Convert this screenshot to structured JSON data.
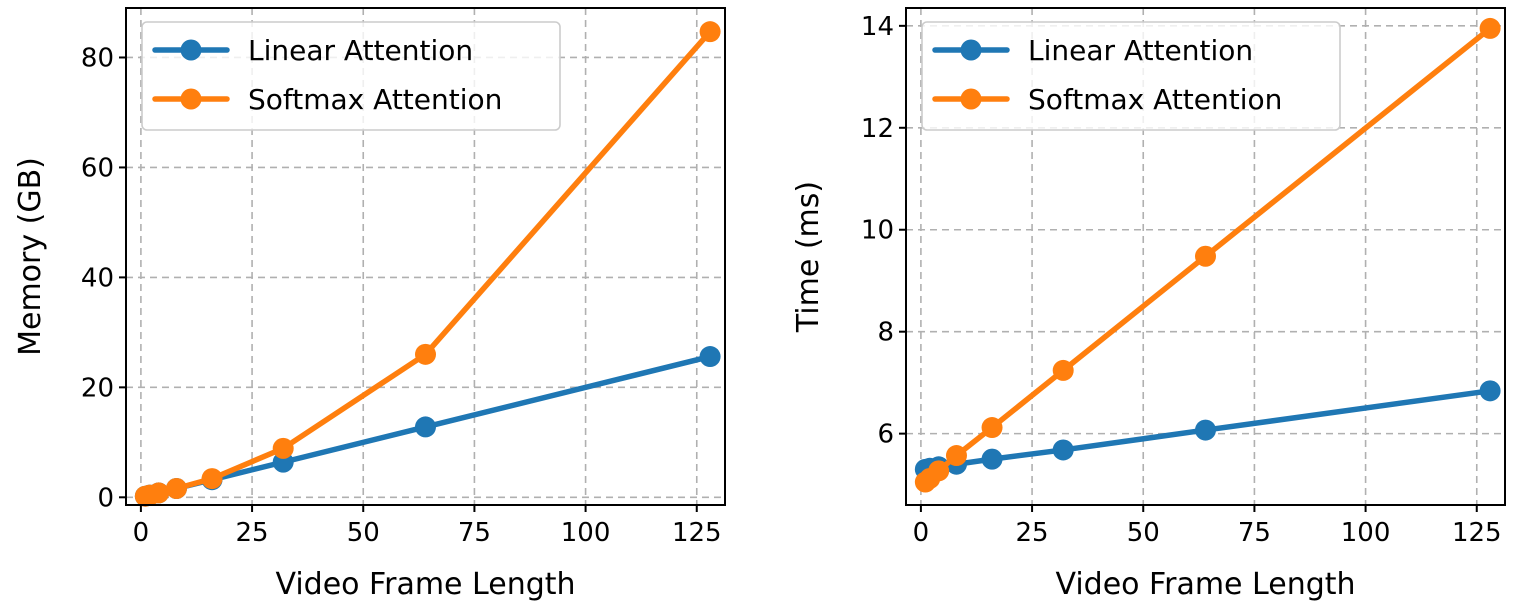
{
  "chart_data": [
    {
      "type": "line",
      "xlabel": "Video Frame Length",
      "ylabel": "Memory (GB)",
      "xlim": [
        -3.35,
        131.35
      ],
      "ylim": [
        -1.4,
        89.0
      ],
      "xticks": [
        0,
        25,
        50,
        75,
        100,
        125
      ],
      "xtick_labels": [
        "0",
        "25",
        "50",
        "75",
        "100",
        "125"
      ],
      "yticks": [
        0,
        20,
        40,
        60,
        80
      ],
      "ytick_labels": [
        "0",
        "20",
        "40",
        "60",
        "80"
      ],
      "grid": true,
      "legend_position": "upper-left",
      "x": [
        1,
        2,
        4,
        8,
        16,
        32,
        64,
        128
      ],
      "series": [
        {
          "name": "Linear Attention",
          "color": "#1f77b4",
          "values": [
            0.2,
            0.4,
            0.8,
            1.6,
            3.2,
            6.4,
            12.8,
            25.6
          ]
        },
        {
          "name": "Softmax Attention",
          "color": "#ff7f0e",
          "values": [
            0.2,
            0.4,
            0.8,
            1.6,
            3.4,
            8.9,
            26.0,
            84.7
          ]
        }
      ]
    },
    {
      "type": "line",
      "xlabel": "Video Frame Length",
      "ylabel": "Time (ms)",
      "xlim": [
        -3.35,
        131.35
      ],
      "ylim": [
        4.6,
        14.35
      ],
      "xticks": [
        0,
        25,
        50,
        75,
        100,
        125
      ],
      "xtick_labels": [
        "0",
        "25",
        "50",
        "75",
        "100",
        "125"
      ],
      "yticks": [
        6,
        8,
        10,
        12,
        14
      ],
      "ytick_labels": [
        "6",
        "8",
        "10",
        "12",
        "14"
      ],
      "grid": true,
      "legend_position": "upper-left",
      "x": [
        1,
        2,
        4,
        8,
        16,
        32,
        64,
        128
      ],
      "series": [
        {
          "name": "Linear Attention",
          "color": "#1f77b4",
          "values": [
            5.3,
            5.32,
            5.35,
            5.4,
            5.5,
            5.68,
            6.07,
            6.84
          ]
        },
        {
          "name": "Softmax Attention",
          "color": "#ff7f0e",
          "values": [
            5.05,
            5.12,
            5.27,
            5.57,
            6.12,
            7.24,
            9.48,
            13.95
          ]
        }
      ]
    }
  ]
}
